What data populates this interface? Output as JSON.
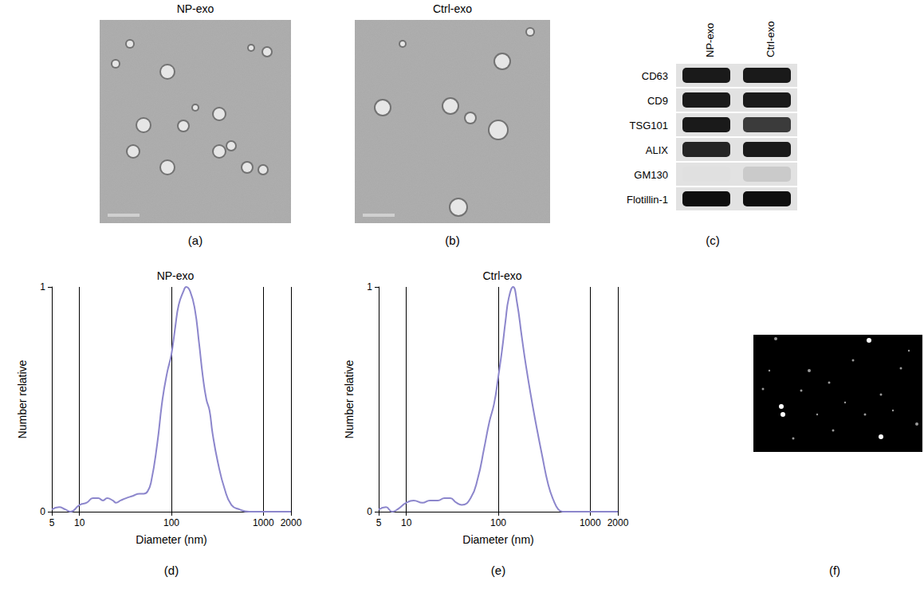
{
  "panels": {
    "a": {
      "title": "NP-exo",
      "caption": "(a)"
    },
    "b": {
      "title": "Ctrl-exo",
      "caption": "(b)"
    },
    "c": {
      "caption": "(c)",
      "columns": [
        "NP-exo",
        "Ctrl-exo"
      ],
      "rows": [
        "CD63",
        "CD9",
        "TSG101",
        "ALIX",
        "GM130",
        "Flotillin-1"
      ],
      "intensity": [
        [
          0.95,
          0.95
        ],
        [
          0.95,
          0.95
        ],
        [
          0.95,
          0.8
        ],
        [
          0.9,
          0.95
        ],
        [
          0.05,
          0.15
        ],
        [
          1,
          1
        ]
      ]
    },
    "f": {
      "caption": "(f)"
    }
  },
  "chart_data": [
    {
      "type": "line",
      "title": "NP-exo",
      "caption": "(d)",
      "x_label": "Diameter (nm)",
      "y_label": "Number relative",
      "x": [
        5,
        6,
        7,
        8,
        10,
        12,
        14,
        16,
        18,
        20,
        23,
        25,
        28,
        32,
        38,
        45,
        50,
        55,
        60,
        70,
        80,
        90,
        100,
        110,
        120,
        135,
        145,
        160,
        180,
        200,
        220,
        240,
        260,
        280,
        320,
        380,
        450,
        550,
        700,
        1000,
        2000
      ],
      "values": [
        0.01,
        0.02,
        0.01,
        0.0,
        0.03,
        0.04,
        0.06,
        0.06,
        0.05,
        0.06,
        0.05,
        0.04,
        0.05,
        0.06,
        0.07,
        0.08,
        0.08,
        0.09,
        0.13,
        0.3,
        0.5,
        0.62,
        0.7,
        0.82,
        0.92,
        0.98,
        1.0,
        0.98,
        0.9,
        0.75,
        0.6,
        0.5,
        0.45,
        0.35,
        0.22,
        0.1,
        0.03,
        0.01,
        0,
        0,
        0
      ],
      "color": "#8c86cc",
      "xlim": [
        5,
        2000
      ],
      "ylim": [
        0,
        1
      ],
      "xticks": [
        5,
        10,
        100,
        1000,
        2000
      ],
      "yticks": [
        0,
        1
      ],
      "log": "x",
      "grid": true
    },
    {
      "type": "line",
      "title": "Ctrl-exo",
      "caption": "(e)",
      "x_label": "Diameter (nm)",
      "y_label": "Number relative",
      "x": [
        5,
        6,
        7,
        8,
        10,
        12,
        15,
        18,
        22,
        26,
        30,
        35,
        40,
        50,
        60,
        70,
        80,
        90,
        100,
        110,
        120,
        130,
        145,
        160,
        180,
        200,
        230,
        260,
        300,
        350,
        400,
        450,
        500,
        700,
        1000,
        2000
      ],
      "values": [
        0.01,
        0.02,
        0,
        0.01,
        0.04,
        0.05,
        0.04,
        0.05,
        0.05,
        0.06,
        0.06,
        0.04,
        0.03,
        0.06,
        0.15,
        0.28,
        0.4,
        0.48,
        0.6,
        0.72,
        0.85,
        0.95,
        1.0,
        0.93,
        0.78,
        0.65,
        0.5,
        0.38,
        0.25,
        0.12,
        0.05,
        0.01,
        0,
        0,
        0,
        0
      ],
      "color": "#8c86cc",
      "xlim": [
        5,
        2000
      ],
      "ylim": [
        0,
        1
      ],
      "xticks": [
        5,
        10,
        100,
        1000,
        2000
      ],
      "yticks": [
        0,
        1
      ],
      "log": "x",
      "grid": true
    }
  ]
}
